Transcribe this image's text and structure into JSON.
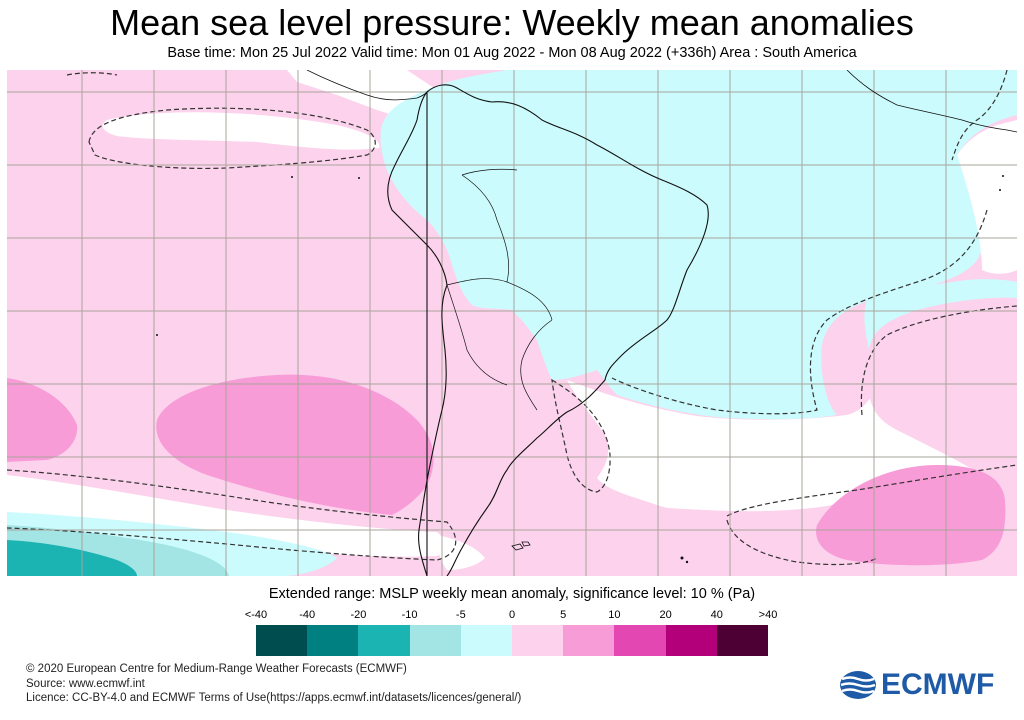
{
  "title": "Mean sea level pressure: Weekly mean anomalies",
  "subtitle": "Base time: Mon 25 Jul 2022 Valid time: Mon 01 Aug 2022 - Mon 08 Aug 2022 (+336h) Area : South America",
  "legend": {
    "title": "Extended range: MSLP weekly mean anomaly, significance level: 10 % (Pa)",
    "ticks": [
      "<-40",
      "-40",
      "-20",
      "-10",
      "-5",
      "0",
      "5",
      "10",
      "20",
      "40",
      ">40"
    ],
    "colors": [
      "#004d4f",
      "#008080",
      "#1cb3b3",
      "#a3e4e4",
      "#ccfbfd",
      "#fcd2ec",
      "#f89cd8",
      "#e347b1",
      "#b3007a",
      "#4d0033"
    ]
  },
  "footer": {
    "line1": "© 2020 European Centre for Medium-Range Weather Forecasts (ECMWF)",
    "line2": "Source: www.ecmwf.int",
    "line3": "Licence: CC-BY-4.0 and ECMWF Terms of Use(https://apps.ecmwf.int/datasets/licences/general/)"
  },
  "logo": {
    "text": "ECMWF",
    "color": "#1f5aa6"
  },
  "map_colors": {
    "pink_light": "#fcd2ec",
    "pink_mid": "#f89cd8",
    "cyan_light": "#ccfbfd",
    "cyan_mid": "#a3e4e4",
    "teal": "#1cb3b3",
    "white": "#ffffff",
    "grid": "#a8a49a",
    "coast": "#111111"
  }
}
